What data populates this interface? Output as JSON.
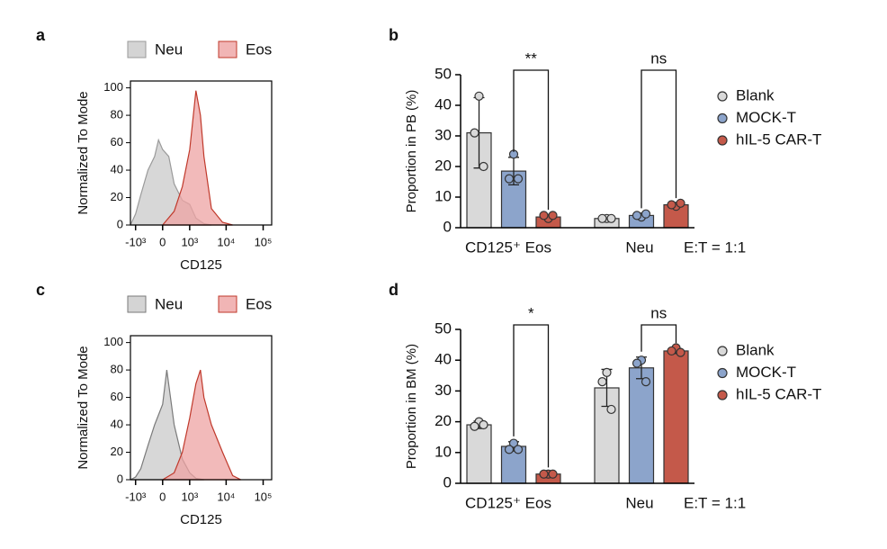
{
  "chart_data": [
    {
      "type": "area",
      "panel": "a",
      "xlabel": "CD125",
      "ylabel": "Normalized To Mode",
      "xscale": "biexponential",
      "xlim": [
        -1400,
        170000
      ],
      "xticks": [
        {
          "value": -1000,
          "label": "-10³"
        },
        0,
        {
          "value": 1000,
          "label": "10³"
        },
        {
          "value": 10000,
          "label": "10⁴"
        },
        {
          "value": 100000,
          "label": "10⁵"
        }
      ],
      "ylim": [
        0,
        105
      ],
      "yticks": [
        0,
        20,
        40,
        60,
        80,
        100
      ],
      "series": [
        {
          "name": "Neu",
          "color": "#c9c9c9",
          "edgecolor": "#9a9a9a",
          "x": [
            -1400,
            -1000,
            -700,
            -400,
            -200,
            -100,
            0,
            150,
            300,
            600,
            1000,
            1500,
            2500,
            4000
          ],
          "values": [
            0,
            8,
            22,
            40,
            50,
            62,
            55,
            50,
            30,
            18,
            15,
            5,
            1,
            0
          ]
        },
        {
          "name": "Eos",
          "color": "#eea3a3",
          "edgecolor": "#c0392b",
          "x": [
            0,
            300,
            600,
            1000,
            1500,
            2000,
            2500,
            4000,
            8000,
            15000
          ],
          "values": [
            0,
            10,
            28,
            55,
            98,
            80,
            50,
            12,
            2,
            0
          ]
        }
      ]
    },
    {
      "type": "bar",
      "panel": "b",
      "ylabel": "Proportion in PB (%)",
      "note": "E:T = 1:1",
      "categories": [
        "CD125⁺ Eos",
        "Neu"
      ],
      "ylim": [
        0,
        50
      ],
      "yticks": [
        0,
        10,
        20,
        30,
        40,
        50
      ],
      "series": [
        {
          "name": "Blank",
          "color": "#d9d9d9",
          "values": [
            31,
            3
          ],
          "errors": [
            11.5,
            0.3
          ],
          "points": [
            [
              43,
              31,
              20
            ],
            [
              3,
              3,
              3
            ]
          ]
        },
        {
          "name": "MOCK-T",
          "color": "#8ca4cb",
          "values": [
            18.5,
            4
          ],
          "errors": [
            4.5,
            0.6
          ],
          "points": [
            [
              24,
              16,
              16
            ],
            [
              3.5,
              4,
              4.5
            ]
          ]
        },
        {
          "name": "hIL-5 CAR-T",
          "color": "#c4594a",
          "values": [
            3.5,
            7.5
          ],
          "errors": [
            0.6,
            0.4
          ],
          "points": [
            [
              3,
              4,
              4
            ],
            [
              7,
              7.5,
              8
            ]
          ]
        }
      ],
      "significance": [
        {
          "label": "**",
          "category": 0,
          "series": [
            1,
            2
          ]
        },
        {
          "label": "ns",
          "category": 1,
          "series": [
            1,
            2
          ]
        }
      ]
    },
    {
      "type": "area",
      "panel": "c",
      "xlabel": "CD125",
      "ylabel": "Normalized To Mode",
      "xscale": "biexponential",
      "xlim": [
        -1400,
        170000
      ],
      "xticks": [
        {
          "value": -1000,
          "label": "-10³"
        },
        0,
        {
          "value": 1000,
          "label": "10³"
        },
        {
          "value": 10000,
          "label": "10⁴"
        },
        {
          "value": 100000,
          "label": "10⁵"
        }
      ],
      "ylim": [
        0,
        105
      ],
      "yticks": [
        0,
        20,
        40,
        60,
        80,
        100
      ],
      "series": [
        {
          "name": "Neu",
          "color": "#c9c9c9",
          "edgecolor": "#7a7a7a",
          "x": [
            -1400,
            -1000,
            -700,
            -400,
            -200,
            0,
            100,
            300,
            600,
            1000,
            1500,
            2500
          ],
          "values": [
            0,
            2,
            8,
            25,
            40,
            55,
            80,
            40,
            15,
            5,
            1,
            0
          ]
        },
        {
          "name": "Eos",
          "color": "#eea3a3",
          "edgecolor": "#c0392b",
          "x": [
            0,
            300,
            600,
            1000,
            1500,
            2000,
            2500,
            4000,
            8000,
            15000,
            25000
          ],
          "values": [
            0,
            5,
            20,
            45,
            70,
            80,
            60,
            40,
            20,
            3,
            0
          ]
        }
      ]
    },
    {
      "type": "bar",
      "panel": "d",
      "ylabel": "Proportion in BM (%)",
      "note": "E:T = 1:1",
      "categories": [
        "CD125⁺ Eos",
        "Neu"
      ],
      "ylim": [
        0,
        50
      ],
      "yticks": [
        0,
        10,
        20,
        30,
        40,
        50
      ],
      "series": [
        {
          "name": "Blank",
          "color": "#d9d9d9",
          "values": [
            19,
            31
          ],
          "errors": [
            1.2,
            6
          ],
          "points": [
            [
              20,
              18.5,
              19
            ],
            [
              36,
              33,
              24
            ]
          ]
        },
        {
          "name": "MOCK-T",
          "color": "#8ca4cb",
          "values": [
            12,
            37.5
          ],
          "errors": [
            1.5,
            3.5
          ],
          "points": [
            [
              13,
              11,
              11
            ],
            [
              40,
              39,
              33
            ]
          ]
        },
        {
          "name": "hIL-5 CAR-T",
          "color": "#c4594a",
          "values": [
            3,
            43
          ],
          "errors": [
            0.4,
            0.8
          ],
          "points": [
            [
              3,
              3,
              3
            ],
            [
              44,
              43,
              42.5
            ]
          ]
        }
      ],
      "significance": [
        {
          "label": "*",
          "category": 0,
          "series": [
            1,
            2
          ]
        },
        {
          "label": "ns",
          "category": 1,
          "series": [
            1,
            2
          ]
        }
      ]
    }
  ]
}
